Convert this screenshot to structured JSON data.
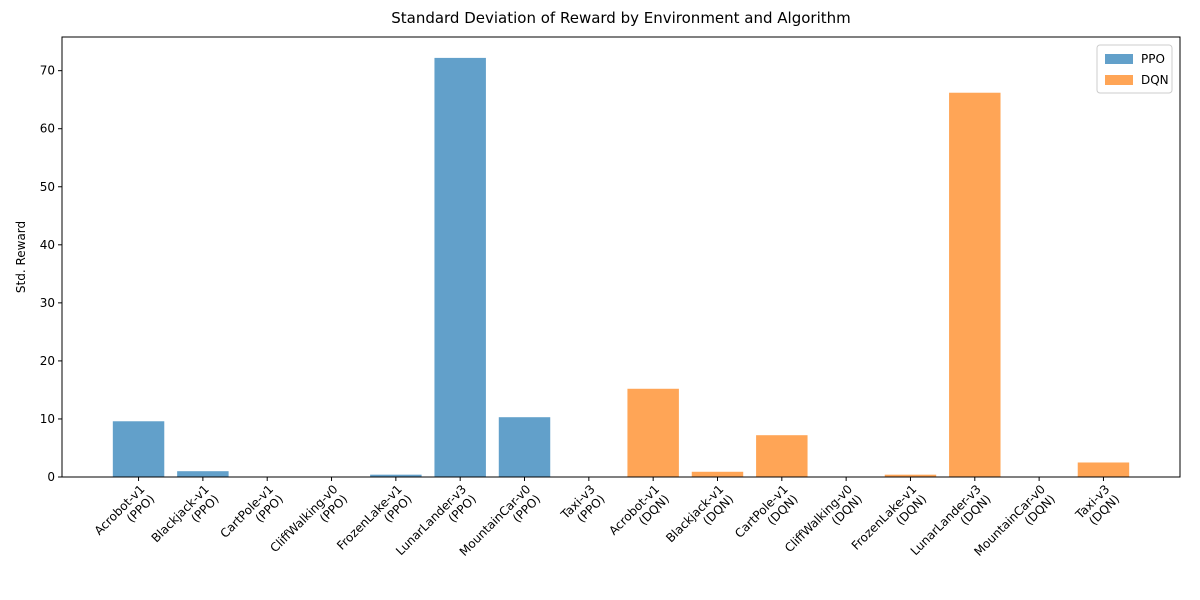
{
  "chart_data": {
    "type": "bar",
    "title": "Standard Deviation of Reward by Environment and Algorithm",
    "y_label": "Std. Reward",
    "categories": [
      "Acrobot-v1\n(PPO)",
      "Blackjack-v1\n(PPO)",
      "CartPole-v1\n(PPO)",
      "CliffWalking-v0\n(PPO)",
      "FrozenLake-v1\n(PPO)",
      "LunarLander-v3\n(PPO)",
      "MountainCar-v0\n(PPO)",
      "Taxi-v3\n(PPO)",
      "Acrobot-v1\n(DQN)",
      "Blackjack-v1\n(DQN)",
      "CartPole-v1\n(DQN)",
      "CliffWalking-v0\n(DQN)",
      "FrozenLake-v1\n(DQN)",
      "LunarLander-v3\n(DQN)",
      "MountainCar-v0\n(DQN)",
      "Taxi-v3\n(DQN)"
    ],
    "series": [
      {
        "name": "PPO",
        "color": "#1f77b4",
        "values": [
          9.6,
          1.0,
          0,
          0,
          0.4,
          72.2,
          10.3,
          0,
          null,
          null,
          null,
          null,
          null,
          null,
          null,
          null
        ]
      },
      {
        "name": "DQN",
        "color": "#ff7f0e",
        "values": [
          null,
          null,
          null,
          null,
          null,
          null,
          null,
          null,
          15.2,
          0.9,
          7.2,
          0,
          0.4,
          66.2,
          0,
          2.5
        ]
      }
    ],
    "alpha": 0.7,
    "ylim": [
      0,
      75.8
    ],
    "yticks": [
      0,
      10,
      20,
      30,
      40,
      50,
      60,
      70
    ],
    "legend": "upper right"
  }
}
